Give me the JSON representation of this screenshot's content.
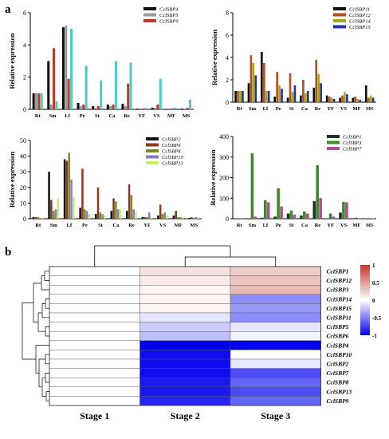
{
  "panel_labels": {
    "a": "a",
    "b": "b"
  },
  "chart_data": [
    {
      "type": "bar",
      "categories": [
        "Rt",
        "Sm",
        "Lf",
        "Pe",
        "St",
        "Ca",
        "Re",
        "YF",
        "VS",
        "MF",
        "MS"
      ],
      "ylabel": "Relative expression",
      "ylim": [
        0,
        6
      ],
      "yticks": [
        "0",
        "2",
        "4",
        "6"
      ],
      "series": [
        {
          "name": "CclSBP4",
          "color": "#111111",
          "values": [
            1,
            3.0,
            5.1,
            0.4,
            0.2,
            0.3,
            0.35,
            0.05,
            0.1,
            0.03,
            0.05
          ]
        },
        {
          "name": "CclSBP5",
          "color": "#9a9a9a",
          "values": [
            1,
            0.3,
            5.2,
            0.2,
            0.1,
            0.2,
            0.2,
            0.05,
            0.1,
            0.05,
            0.05
          ]
        },
        {
          "name": "CclSBP9",
          "color": "#c0392b",
          "values": [
            1,
            3.8,
            1.9,
            0.3,
            0.2,
            0.3,
            1.6,
            0.05,
            0.3,
            0.05,
            0.1
          ]
        },
        {
          "name": "",
          "color": "#4ecdc4",
          "values": [
            1,
            0.5,
            5.0,
            2.7,
            1.8,
            3.0,
            2.9,
            0.1,
            1.9,
            0.1,
            0.6
          ]
        }
      ]
    },
    {
      "type": "bar",
      "categories": [
        "Rt",
        "Sm",
        "Lf",
        "Pe",
        "St",
        "Ca",
        "Re",
        "YF",
        "VS",
        "MF",
        "MS"
      ],
      "ylabel": "Relative expression",
      "ylim": [
        0,
        8
      ],
      "yticks": [
        "0",
        "2",
        "4",
        "6",
        "8"
      ],
      "series": [
        {
          "name": "CclSBP11",
          "color": "#111111",
          "values": [
            1,
            1.7,
            4.5,
            0.5,
            0.4,
            0.6,
            1.3,
            0.6,
            0.4,
            0.4,
            1.5
          ]
        },
        {
          "name": "CclSBP12",
          "color": "#b5501f",
          "values": [
            1,
            4.2,
            3.5,
            2.7,
            2.6,
            2.0,
            3.8,
            0.5,
            0.6,
            0.5,
            0.4
          ]
        },
        {
          "name": "CclSBP14",
          "color": "#a3a81a",
          "values": [
            1,
            3.5,
            1.0,
            1.5,
            0.9,
            0.8,
            2.5,
            0.4,
            0.9,
            0.3,
            0.6
          ]
        },
        {
          "name": "CclSBP15",
          "color": "#2233aa",
          "values": [
            1,
            2.4,
            1.0,
            1.2,
            1.5,
            1.0,
            1.7,
            0.3,
            0.7,
            0.2,
            0.4
          ]
        }
      ]
    },
    {
      "type": "bar",
      "categories": [
        "Rt",
        "Sm",
        "Lf",
        "Pe",
        "St",
        "Ca",
        "Re",
        "YF",
        "VS",
        "MF",
        "MS"
      ],
      "ylabel": "Relative expression",
      "ylim": [
        0,
        50
      ],
      "yticks": [
        "0",
        "10",
        "20",
        "30",
        "40",
        "50"
      ],
      "series": [
        {
          "name": "CclSBP2",
          "color": "#111111",
          "values": [
            1,
            30,
            38,
            7,
            3,
            5,
            5,
            1,
            2,
            2,
            0.5
          ]
        },
        {
          "name": "CclSBP6",
          "color": "#8b3a1a",
          "values": [
            1,
            12,
            37,
            32,
            20,
            13,
            22,
            1,
            9,
            5,
            1
          ]
        },
        {
          "name": "CclSBP8",
          "color": "#7a8a2a",
          "values": [
            1,
            5,
            42,
            6,
            4,
            11,
            15,
            1,
            3,
            1,
            0.5
          ]
        },
        {
          "name": "CclSBP10",
          "color": "#8080c0",
          "values": [
            0.5,
            6,
            25,
            5,
            3,
            6,
            6,
            4,
            4,
            1,
            1
          ]
        },
        {
          "name": "CclSBP13",
          "color": "#c8f060",
          "values": [
            0.5,
            13,
            14,
            3,
            2,
            6,
            5,
            1,
            2,
            1,
            1
          ]
        }
      ]
    },
    {
      "type": "bar",
      "categories": [
        "Rt",
        "Sm",
        "Lf",
        "Pe",
        "St",
        "Ca",
        "Re",
        "YF",
        "VS",
        "MF",
        "MS"
      ],
      "ylabel": "Relative expression",
      "ylim": [
        0,
        400
      ],
      "yticks": [
        "0",
        "100",
        "200",
        "300",
        "400"
      ],
      "series": [
        {
          "name": "CclSBP1",
          "color": "#1a3a1a",
          "values": [
            1,
            1,
            5,
            10,
            25,
            15,
            85,
            2,
            30,
            3,
            2
          ]
        },
        {
          "name": "CclSBP3",
          "color": "#3f8a2a",
          "values": [
            1,
            318,
            90,
            148,
            40,
            35,
            260,
            25,
            82,
            5,
            3
          ]
        },
        {
          "name": "CclSBP7",
          "color": "#b0508a",
          "values": [
            1,
            10,
            80,
            60,
            20,
            25,
            100,
            10,
            80,
            2,
            2
          ]
        }
      ]
    },
    {
      "type": "heatmap",
      "x": [
        "Stage 1",
        "Stage 2",
        "Stage 3"
      ],
      "y": [
        "CclSBP1",
        "CclSBP12",
        "CclSBP3",
        "CclSBP14",
        "CclSBP15",
        "CclSBP11",
        "CclSBP5",
        "CclSBP6",
        "CclSBP4",
        "CclSBP10",
        "CclSBP2",
        "CclSBP7",
        "CclSBP8",
        "CclSBP13",
        "CclSBP9"
      ],
      "values": [
        [
          0,
          0.15,
          0.25
        ],
        [
          0,
          0.1,
          0.3
        ],
        [
          0,
          0.05,
          0.35
        ],
        [
          0,
          0.05,
          -0.45
        ],
        [
          0,
          0.05,
          -0.4
        ],
        [
          0,
          -0.1,
          -0.45
        ],
        [
          0,
          -0.2,
          -0.1
        ],
        [
          0,
          -0.25,
          -0.05
        ],
        [
          0,
          -1,
          -1
        ],
        [
          0,
          -0.95,
          0
        ],
        [
          0,
          -0.95,
          -0.1
        ],
        [
          0,
          -0.95,
          -0.7
        ],
        [
          0,
          -0.9,
          -0.6
        ],
        [
          0,
          -0.9,
          -0.7
        ],
        [
          0,
          -0.85,
          -0.6
        ]
      ],
      "colorbar": {
        "ticks": [
          "1",
          "0.5",
          "0",
          "-0.5",
          "-1"
        ],
        "colors": [
          "#c0392b",
          "#ffffff",
          "#0000ee"
        ]
      }
    }
  ]
}
